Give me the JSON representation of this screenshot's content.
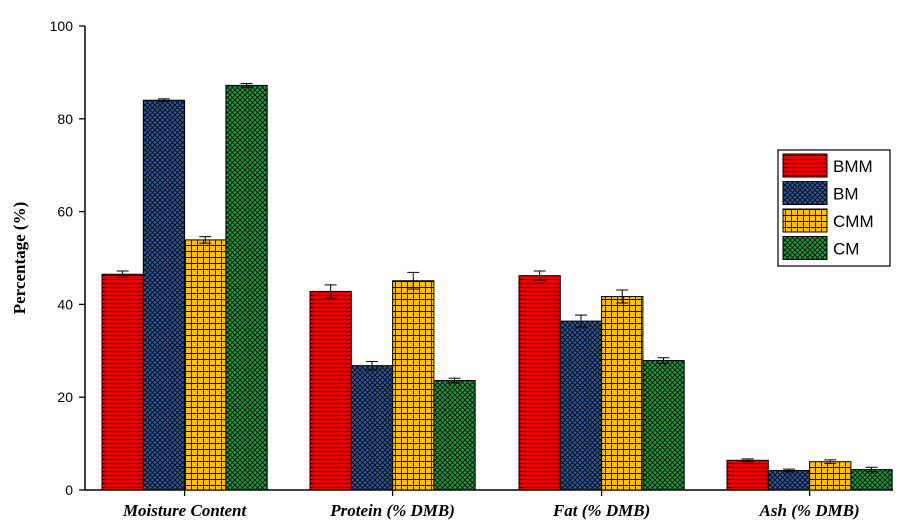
{
  "chart_data": {
    "type": "bar",
    "title": "",
    "xlabel": "",
    "ylabel": "Percentage (%)",
    "ylim": [
      0,
      100
    ],
    "yticks": [
      0,
      20,
      40,
      60,
      80,
      100
    ],
    "ytick_labels": [
      "0",
      "20",
      "40",
      "60",
      "80",
      "100"
    ],
    "categories": [
      "Moisture Content",
      "Protein (% DMB)",
      "Fat (% DMB)",
      "Ash (% DMB)"
    ],
    "grid": false,
    "legend_position": "right",
    "series": [
      {
        "name": "BMM",
        "color": "#e60000",
        "pattern": "horizontal-lines",
        "values": [
          46.5,
          42.8,
          46.2,
          6.4
        ],
        "errors": [
          0.7,
          1.4,
          1.0,
          0.3
        ]
      },
      {
        "name": "BM",
        "color": "#2e5a9c",
        "pattern": "crosshatch",
        "values": [
          84.0,
          26.8,
          36.4,
          4.2
        ],
        "errors": [
          0.3,
          0.9,
          1.3,
          0.3
        ]
      },
      {
        "name": "CMM",
        "color": "#ffc000",
        "pattern": "grid",
        "values": [
          53.9,
          45.1,
          41.7,
          6.1
        ],
        "errors": [
          0.7,
          1.8,
          1.4,
          0.4
        ]
      },
      {
        "name": "CM",
        "color": "#1e9e3c",
        "pattern": "crosshatch",
        "values": [
          87.2,
          23.6,
          27.9,
          4.4
        ],
        "errors": [
          0.4,
          0.5,
          0.6,
          0.5
        ]
      }
    ]
  }
}
